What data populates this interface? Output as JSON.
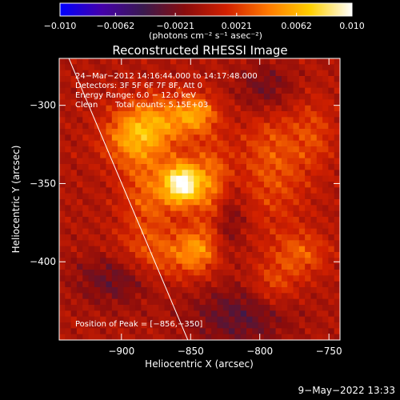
{
  "chart_data": {
    "type": "heatmap",
    "title": "Reconstructed RHESSI Image",
    "xlabel": "Heliocentric X (arcsec)",
    "ylabel": "Heliocentric Y (arcsec)",
    "xlim": [
      -945,
      -742
    ],
    "ylim": [
      -450,
      -270
    ],
    "x_ticks": [
      -900,
      -850,
      -800,
      -750
    ],
    "x_tick_labels": [
      "−900",
      "−850",
      "−800",
      "−750"
    ],
    "y_ticks": [
      -300,
      -350,
      -400
    ],
    "y_tick_labels": [
      "−300",
      "−350",
      "−400"
    ],
    "colorbar": {
      "min": -0.01,
      "max": 0.01,
      "ticks": [
        -0.01,
        -0.0062,
        -0.0021,
        0.0021,
        0.0062,
        0.01
      ],
      "tick_labels": [
        "−0.010",
        "−0.0062",
        "−0.0021",
        "0.0021",
        "0.0062",
        "0.010"
      ],
      "units_label": "(photons cm⁻² s⁻¹ asec⁻²)",
      "colormap": [
        "#0000ff",
        "#4400aa",
        "#3a1a4e",
        "#8a0c0c",
        "#d22000",
        "#ff7a00",
        "#ffd000",
        "#ffffff"
      ]
    },
    "annotations": {
      "time_range": "24−Mar−2012 14:16:44.000 to 14:17:48.000",
      "detectors": "Detectors: 3F 5F 6F 7F 8F, Att 0",
      "energy_range": "Energy Range: 6.0 − 12.0 keV",
      "clean": "Clean",
      "total_counts": "Total counts: 5.15E+03",
      "peak_position": "Position of Peak = [−856,−350]"
    },
    "peak": {
      "x": -856,
      "y": -350
    },
    "limb_line": [
      [
        -938,
        -270
      ],
      [
        -852,
        -450
      ]
    ],
    "sources": [
      {
        "x": -856,
        "y": -350,
        "amp": 0.01,
        "sx": 9,
        "sy": 9
      },
      {
        "x": -872,
        "y": -310,
        "amp": 0.0045,
        "sx": 20,
        "sy": 12
      },
      {
        "x": -893,
        "y": -322,
        "amp": 0.004,
        "sx": 15,
        "sy": 12
      },
      {
        "x": -845,
        "y": -305,
        "amp": 0.004,
        "sx": 10,
        "sy": 8
      },
      {
        "x": -880,
        "y": -355,
        "amp": 0.0035,
        "sx": 14,
        "sy": 20
      },
      {
        "x": -835,
        "y": -350,
        "amp": 0.004,
        "sx": 10,
        "sy": 18
      },
      {
        "x": -872,
        "y": -396,
        "amp": 0.003,
        "sx": 25,
        "sy": 12
      },
      {
        "x": -845,
        "y": -392,
        "amp": 0.0035,
        "sx": 10,
        "sy": 10
      },
      {
        "x": -790,
        "y": -335,
        "amp": 0.003,
        "sx": 18,
        "sy": 30
      },
      {
        "x": -770,
        "y": -395,
        "amp": 0.003,
        "sx": 14,
        "sy": 10
      },
      {
        "x": -790,
        "y": -415,
        "amp": 0.0025,
        "sx": 12,
        "sy": 10
      },
      {
        "x": -760,
        "y": -318,
        "amp": 0.002,
        "sx": 10,
        "sy": 15
      },
      {
        "x": -905,
        "y": -410,
        "amp": -0.003,
        "sx": 20,
        "sy": 12
      },
      {
        "x": -815,
        "y": -435,
        "amp": -0.003,
        "sx": 25,
        "sy": 14
      },
      {
        "x": -795,
        "y": -290,
        "amp": -0.003,
        "sx": 15,
        "sy": 12
      },
      {
        "x": -822,
        "y": -372,
        "amp": -0.0025,
        "sx": 8,
        "sy": 15
      }
    ]
  },
  "footer": {
    "timestamp": "9−May−2022 13:33"
  }
}
